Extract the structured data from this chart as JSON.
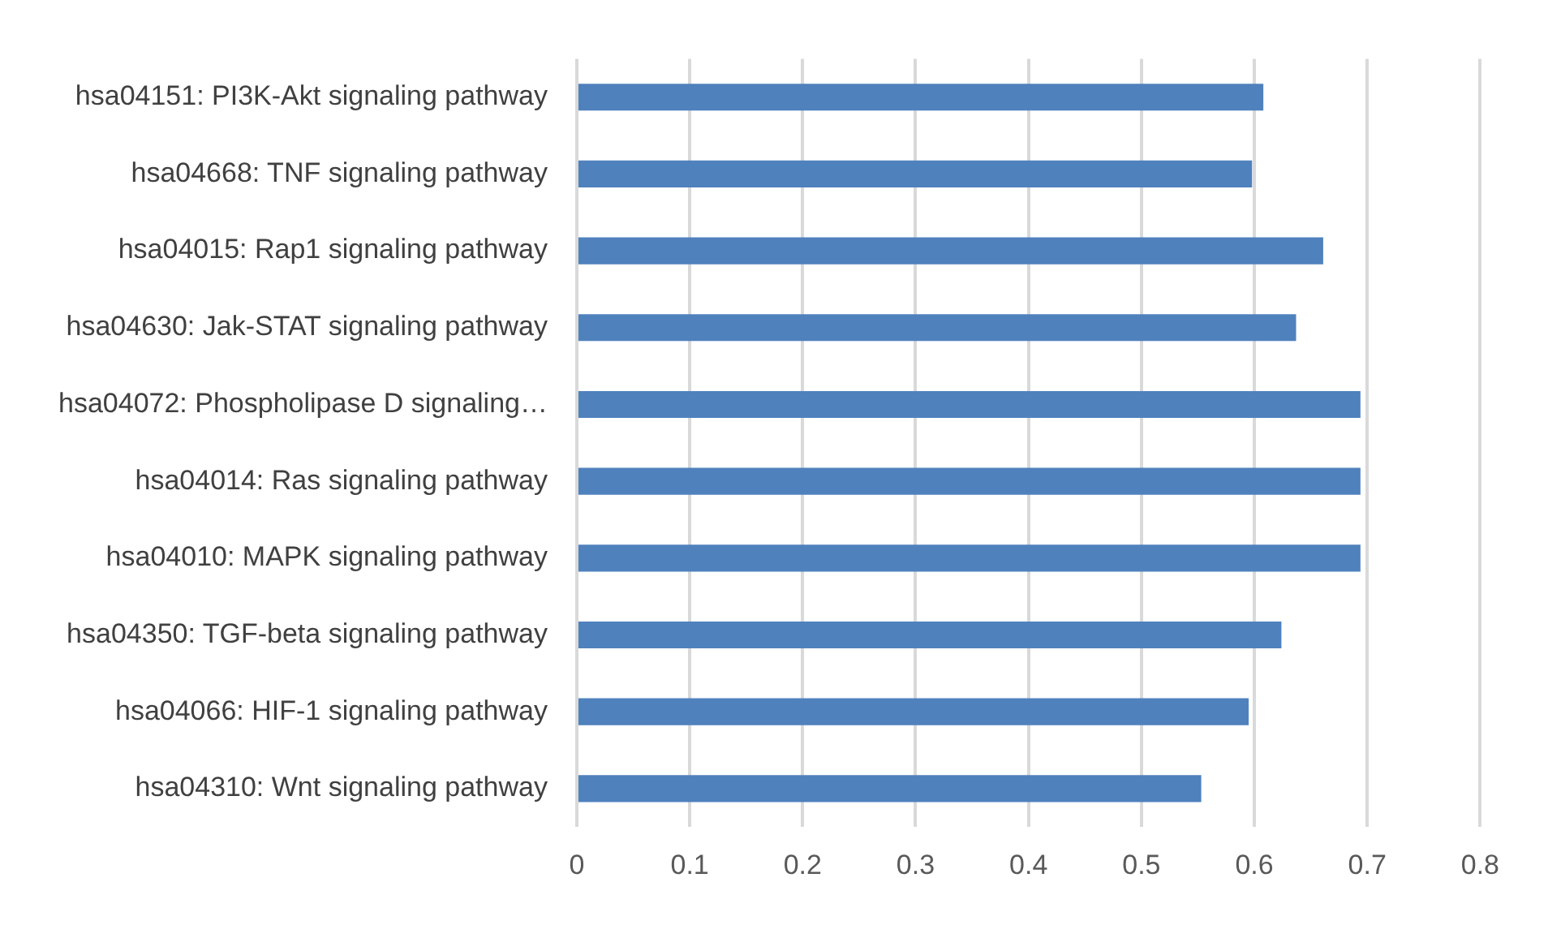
{
  "chart_data": {
    "type": "bar",
    "orientation": "horizontal",
    "categories": [
      "hsa04151: PI3K-Akt signaling pathway",
      "hsa04668: TNF signaling pathway",
      "hsa04015: Rap1 signaling pathway",
      "hsa04630: Jak-STAT signaling pathway",
      "hsa04072: Phospholipase D signaling…",
      "hsa04014: Ras signaling pathway",
      "hsa04010: MAPK signaling pathway",
      "hsa04350: TGF-beta signaling pathway",
      "hsa04066: HIF-1 signaling pathway",
      "hsa04310: Wnt signaling pathway"
    ],
    "values": [
      0.608,
      0.598,
      0.661,
      0.637,
      0.694,
      0.694,
      0.694,
      0.624,
      0.595,
      0.553
    ],
    "color": "#4f81bd",
    "xlim": [
      0,
      0.8
    ],
    "xticks": [
      0,
      0.1,
      0.2,
      0.3,
      0.4,
      0.5,
      0.6,
      0.7,
      0.8
    ],
    "grid": "x",
    "legend": false
  }
}
